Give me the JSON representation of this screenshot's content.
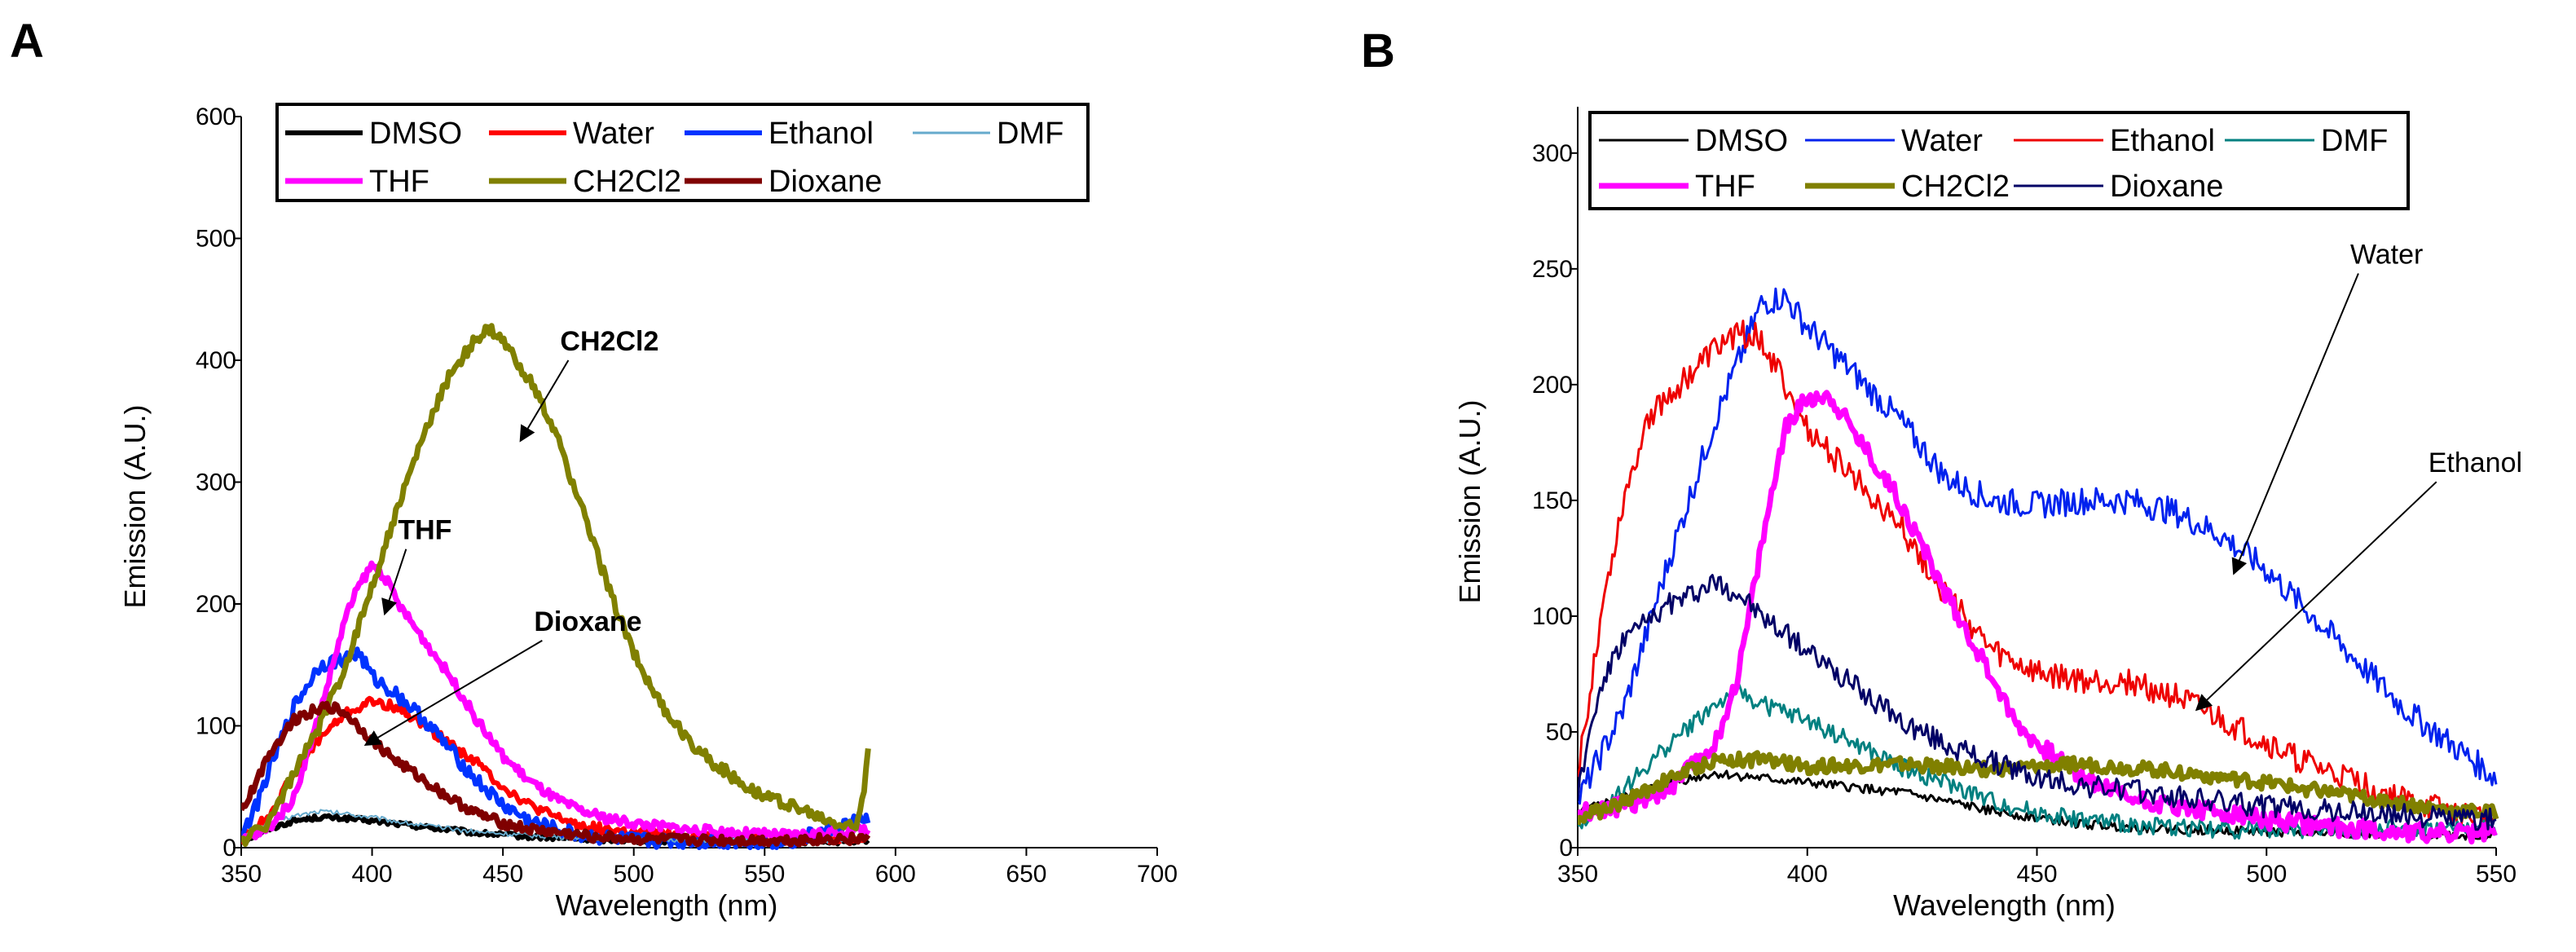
{
  "chart_data": [
    {
      "panel": "A",
      "type": "line",
      "title": "",
      "xlabel": "Wavelength (nm)",
      "ylabel": "Emission (A.U.)",
      "xlim": [
        350,
        700
      ],
      "ylim": [
        0,
        600
      ],
      "xticks": [
        "350",
        "400",
        "450",
        "500",
        "550",
        "600",
        "650",
        "700"
      ],
      "yticks": [
        "0",
        "100",
        "200",
        "300",
        "400",
        "500",
        "600"
      ],
      "grid": false,
      "legend": {
        "placement": "top",
        "rows": [
          [
            "DMSO",
            "Water",
            "Ethanol",
            "DMF"
          ],
          [
            "THF",
            "CH2Cl2",
            "Dioxane"
          ]
        ],
        "labels_as_shown": {
          "DMSO": "DMSO",
          "Water": "Water",
          "Ethanol": "Ethanol",
          "DMF": "DMF",
          "THF": "THF",
          "CH2Cl2": "CH2Cl2",
          "Dioxane": "Dioxane"
        }
      },
      "series": [
        {
          "name": "DMSO",
          "color": "#000000",
          "width": 6,
          "noise": 2,
          "x": [
            350,
            360,
            370,
            380,
            390,
            400,
            420,
            440,
            460,
            480,
            500,
            530,
            560,
            590
          ],
          "y": [
            5,
            15,
            22,
            25,
            24,
            22,
            17,
            12,
            9,
            7,
            6,
            5,
            5,
            5
          ]
        },
        {
          "name": "Water",
          "color": "#ff0000",
          "width": 6,
          "noise": 4,
          "x": [
            350,
            360,
            370,
            380,
            390,
            400,
            410,
            420,
            430,
            440,
            450,
            460,
            470,
            480,
            500,
            530,
            560,
            590
          ],
          "y": [
            5,
            25,
            60,
            90,
            110,
            120,
            115,
            100,
            85,
            70,
            50,
            35,
            25,
            18,
            12,
            8,
            6,
            10
          ]
        },
        {
          "name": "Ethanol",
          "color": "#0033ff",
          "width": 6,
          "noise": 6,
          "x": [
            350,
            355,
            360,
            370,
            380,
            390,
            395,
            400,
            410,
            420,
            430,
            440,
            450,
            460,
            470,
            480,
            500,
            530,
            560,
            590
          ],
          "y": [
            10,
            30,
            60,
            115,
            150,
            155,
            160,
            140,
            125,
            105,
            80,
            55,
            35,
            22,
            15,
            10,
            6,
            5,
            5,
            25
          ]
        },
        {
          "name": "DMF",
          "color": "#66aacc",
          "width": 2,
          "noise": 2,
          "x": [
            350,
            360,
            370,
            380,
            390,
            400,
            420,
            440,
            460,
            480,
            500,
            530,
            560,
            590
          ],
          "y": [
            8,
            20,
            26,
            30,
            28,
            25,
            18,
            13,
            10,
            8,
            7,
            6,
            6,
            6
          ]
        },
        {
          "name": "THF",
          "color": "#ff00ff",
          "width": 7,
          "noise": 4,
          "x": [
            350,
            360,
            370,
            380,
            390,
            395,
            400,
            405,
            410,
            420,
            430,
            440,
            450,
            460,
            470,
            480,
            490,
            500,
            520,
            540,
            560,
            590
          ],
          "y": [
            5,
            15,
            40,
            110,
            190,
            215,
            232,
            222,
            200,
            170,
            140,
            105,
            75,
            55,
            40,
            30,
            24,
            20,
            15,
            12,
            10,
            15
          ]
        },
        {
          "name": "CH2Cl2",
          "color": "#808000",
          "width": 7,
          "noise": 5,
          "x": [
            350,
            360,
            370,
            380,
            390,
            400,
            410,
            420,
            430,
            440,
            445,
            450,
            460,
            470,
            480,
            490,
            500,
            510,
            520,
            530,
            540,
            550,
            560,
            570,
            580,
            585,
            588,
            590
          ],
          "y": [
            5,
            20,
            60,
            100,
            150,
            215,
            280,
            340,
            390,
            418,
            425,
            415,
            385,
            340,
            280,
            215,
            160,
            118,
            90,
            70,
            55,
            42,
            35,
            25,
            18,
            16,
            50,
            95
          ]
        },
        {
          "name": "Dioxane",
          "color": "#7f0000",
          "width": 7,
          "noise": 4,
          "x": [
            350,
            355,
            360,
            370,
            380,
            385,
            390,
            400,
            410,
            420,
            430,
            440,
            450,
            460,
            480,
            500,
            530,
            560,
            590
          ],
          "y": [
            30,
            50,
            75,
            105,
            115,
            115,
            110,
            88,
            70,
            55,
            40,
            28,
            20,
            15,
            10,
            7,
            6,
            6,
            8
          ]
        }
      ],
      "annotations": [
        {
          "text": "CH2Cl2",
          "bold": true,
          "arrow_from": [
            475,
            400
          ],
          "arrow_to": [
            457,
            335
          ]
        },
        {
          "text": "THF",
          "bold": true,
          "arrow_from": [
            413,
            245
          ],
          "arrow_to": [
            405,
            193
          ]
        },
        {
          "text": "Dioxane",
          "bold": true,
          "arrow_from": [
            465,
            170
          ],
          "arrow_to": [
            398,
            85
          ]
        }
      ]
    },
    {
      "panel": "B",
      "type": "line",
      "title": "",
      "xlabel": "Wavelength (nm)",
      "ylabel": "Emission (A.U.)",
      "xlim": [
        350,
        550
      ],
      "ylim": [
        0,
        320
      ],
      "xticks": [
        "350",
        "400",
        "450",
        "500",
        "550"
      ],
      "yticks": [
        "0",
        "50",
        "100",
        "150",
        "200",
        "250",
        "300"
      ],
      "grid": false,
      "legend": {
        "placement": "top",
        "rows": [
          [
            "DMSO",
            "Water",
            "Ethanol",
            "DMF"
          ],
          [
            "THF",
            "CH2Cl2",
            "Dioxane"
          ]
        ],
        "labels_as_shown": {
          "DMSO": "DMSO",
          "Water": "Water",
          "Ethanol": "Ethanol",
          "DMF": "DMF",
          "THF": "THF",
          "CH2Cl2": "CH2Cl2",
          "Dioxane": "Dioxane"
        }
      },
      "series": [
        {
          "name": "DMSO",
          "color": "#000000",
          "width": 3,
          "noise": 2,
          "x": [
            350,
            360,
            370,
            380,
            390,
            400,
            420,
            440,
            460,
            480,
            500,
            520,
            550
          ],
          "y": [
            15,
            22,
            28,
            32,
            30,
            28,
            24,
            16,
            10,
            8,
            7,
            6,
            5
          ]
        },
        {
          "name": "Water",
          "color": "#0022ee",
          "width": 3,
          "noise": 6,
          "x": [
            350,
            360,
            370,
            380,
            385,
            390,
            395,
            400,
            410,
            420,
            430,
            440,
            450,
            460,
            470,
            480,
            490,
            500,
            510,
            520,
            530,
            540,
            550
          ],
          "y": [
            20,
            60,
            125,
            185,
            210,
            235,
            238,
            225,
            205,
            185,
            160,
            150,
            148,
            150,
            150,
            145,
            135,
            120,
            100,
            80,
            60,
            45,
            30
          ]
        },
        {
          "name": "Ethanol",
          "color": "#ee0000",
          "width": 3,
          "noise": 6,
          "x": [
            350,
            355,
            360,
            365,
            370,
            380,
            385,
            390,
            395,
            400,
            405,
            410,
            420,
            430,
            440,
            450,
            460,
            470,
            480,
            490,
            500,
            510,
            520,
            530,
            540,
            550
          ],
          "y": [
            30,
            100,
            150,
            185,
            195,
            215,
            222,
            220,
            200,
            180,
            170,
            160,
            140,
            110,
            85,
            75,
            72,
            72,
            65,
            55,
            45,
            35,
            28,
            20,
            15,
            12
          ]
        },
        {
          "name": "DMF",
          "color": "#008080",
          "width": 3,
          "noise": 4,
          "x": [
            350,
            360,
            370,
            380,
            385,
            390,
            400,
            410,
            420,
            430,
            440,
            450,
            460,
            470,
            480,
            490,
            500,
            520,
            550
          ],
          "y": [
            10,
            25,
            45,
            62,
            67,
            62,
            55,
            45,
            35,
            28,
            20,
            15,
            12,
            10,
            9,
            8,
            8,
            8,
            8
          ]
        },
        {
          "name": "THF",
          "color": "#ff00ff",
          "width": 7,
          "noise": 4,
          "x": [
            350,
            360,
            370,
            380,
            385,
            390,
            395,
            400,
            405,
            410,
            420,
            430,
            440,
            445,
            450,
            460,
            470,
            480,
            490,
            500,
            510,
            520,
            530,
            540,
            550
          ],
          "y": [
            15,
            18,
            25,
            45,
            75,
            130,
            180,
            195,
            195,
            180,
            150,
            110,
            75,
            55,
            45,
            30,
            22,
            18,
            15,
            12,
            10,
            8,
            7,
            6,
            6
          ]
        },
        {
          "name": "CH2Cl2",
          "color": "#808000",
          "width": 7,
          "noise": 3,
          "x": [
            350,
            360,
            370,
            380,
            390,
            400,
            420,
            440,
            460,
            480,
            500,
            520,
            540,
            550
          ],
          "y": [
            12,
            20,
            30,
            38,
            38,
            35,
            36,
            34,
            36,
            33,
            28,
            22,
            16,
            15
          ]
        },
        {
          "name": "Dioxane",
          "color": "#000066",
          "width": 3,
          "noise": 5,
          "x": [
            350,
            355,
            360,
            370,
            380,
            385,
            390,
            400,
            410,
            420,
            430,
            440,
            450,
            460,
            470,
            480,
            490,
            500,
            520,
            550
          ],
          "y": [
            25,
            70,
            90,
            105,
            115,
            110,
            100,
            85,
            70,
            55,
            45,
            37,
            30,
            27,
            25,
            22,
            20,
            18,
            15,
            12
          ]
        }
      ],
      "annotations": [
        {
          "text": "Water",
          "bold": false,
          "arrow_from": [
            520,
            248
          ],
          "arrow_to": [
            493,
            119
          ]
        },
        {
          "text": "Ethanol",
          "bold": false,
          "arrow_from": [
            537,
            158
          ],
          "arrow_to": [
            485,
            60
          ]
        }
      ]
    }
  ]
}
